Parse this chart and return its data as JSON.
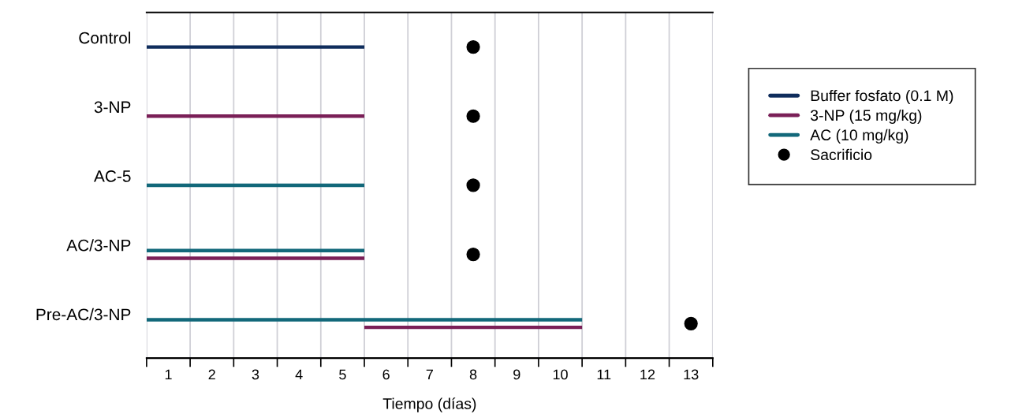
{
  "chart_data": {
    "type": "bar",
    "orientation": "horizontal",
    "xlabel": "Tiempo (días)",
    "categories": [
      "Control",
      "3-NP",
      "AC-5",
      "AC/3-NP",
      "Pre-AC/3-NP"
    ],
    "series": [
      {
        "name": "Buffer fosfato (0.1 M)",
        "color": "#0f2d5c",
        "values": [
          5,
          null,
          null,
          null,
          null
        ],
        "base": [
          0,
          null,
          null,
          null,
          null
        ]
      },
      {
        "name": "3-NP (15 mg/kg)",
        "color": "#7a1f57",
        "values": [
          null,
          5,
          null,
          5,
          5
        ],
        "base": [
          null,
          0,
          null,
          0,
          5
        ]
      },
      {
        "name": "AC (10 mg/kg)",
        "color": "#12687a",
        "values": [
          null,
          null,
          5,
          5,
          10
        ],
        "base": [
          null,
          null,
          0,
          0,
          0
        ]
      },
      {
        "name": "Sacrificio",
        "type": "scatter",
        "color": "#000000",
        "marker": "circle",
        "values": [
          7.5,
          7.5,
          7.5,
          7.5,
          12.5
        ]
      }
    ],
    "xlim": [
      0,
      13
    ],
    "xticks": [
      {
        "value": 0,
        "label": null
      },
      {
        "value": 1,
        "label": null
      },
      {
        "value": 2,
        "label": null
      },
      {
        "value": 3,
        "label": null
      },
      {
        "value": 4,
        "label": null
      },
      {
        "value": 5,
        "label": null
      },
      {
        "value": 6,
        "label": null
      },
      {
        "value": 7,
        "label": null
      },
      {
        "value": 8,
        "label": null
      },
      {
        "value": 9,
        "label": null
      },
      {
        "value": 10,
        "label": null
      },
      {
        "value": 11,
        "label": null
      },
      {
        "value": 12,
        "label": null
      },
      {
        "value": 13,
        "label": null
      },
      {
        "value": 0.5,
        "label": "1"
      },
      {
        "value": 1.5,
        "label": "2"
      },
      {
        "value": 2.5,
        "label": "3"
      },
      {
        "value": 3.5,
        "label": "4"
      },
      {
        "value": 4.5,
        "label": "5"
      },
      {
        "value": 5.5,
        "label": "6"
      },
      {
        "value": 6.5,
        "label": "7"
      },
      {
        "value": 7.5,
        "label": "8"
      },
      {
        "value": 8.5,
        "label": "9"
      },
      {
        "value": 9.5,
        "label": "10"
      },
      {
        "value": 10.5,
        "label": "11"
      },
      {
        "value": 11.5,
        "label": "12"
      },
      {
        "value": 12.5,
        "label": "13"
      }
    ],
    "grid": "x",
    "legend": "right"
  }
}
